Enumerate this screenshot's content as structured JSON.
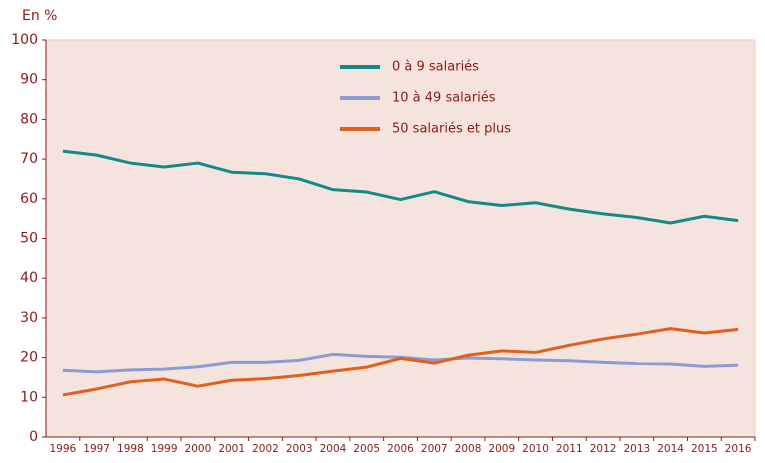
{
  "chart_data": {
    "type": "line",
    "y_label": "En %",
    "categories": [
      "1996",
      "1997",
      "1998",
      "1999",
      "2000",
      "2001",
      "2002",
      "2003",
      "2004",
      "2005",
      "2006",
      "2007",
      "2008",
      "2009",
      "2010",
      "2011",
      "2012",
      "2013",
      "2014",
      "2015",
      "2016"
    ],
    "series": [
      {
        "name": "0 à 9 salariés",
        "color": "#14898a",
        "values": [
          72,
          71,
          69,
          68,
          69,
          66.7,
          66.3,
          65,
          62.3,
          61.7,
          59.8,
          61.8,
          59.3,
          58.3,
          59,
          57.4,
          56.2,
          55.3,
          53.9,
          55.6,
          54.5
        ]
      },
      {
        "name": "10 à 49 salariés",
        "color": "#8c9bd4",
        "values": [
          16.8,
          16.4,
          16.9,
          17.1,
          17.7,
          18.8,
          18.8,
          19.3,
          20.8,
          20.3,
          20.1,
          19.4,
          19.9,
          19.7,
          19.4,
          19.2,
          18.8,
          18.5,
          18.4,
          17.8,
          18.1
        ]
      },
      {
        "name": "50 salariés et plus",
        "color": "#e0601c",
        "values": [
          10.6,
          12.1,
          13.9,
          14.6,
          12.8,
          14.3,
          14.7,
          15.5,
          16.6,
          17.6,
          19.8,
          18.6,
          20.6,
          21.7,
          21.3,
          23.1,
          24.7,
          25.9,
          27.3,
          26.2,
          27.1
        ]
      }
    ],
    "ylim": [
      0,
      100
    ],
    "yticks": [
      0,
      10,
      20,
      30,
      40,
      50,
      60,
      70,
      80,
      90,
      100
    ]
  }
}
